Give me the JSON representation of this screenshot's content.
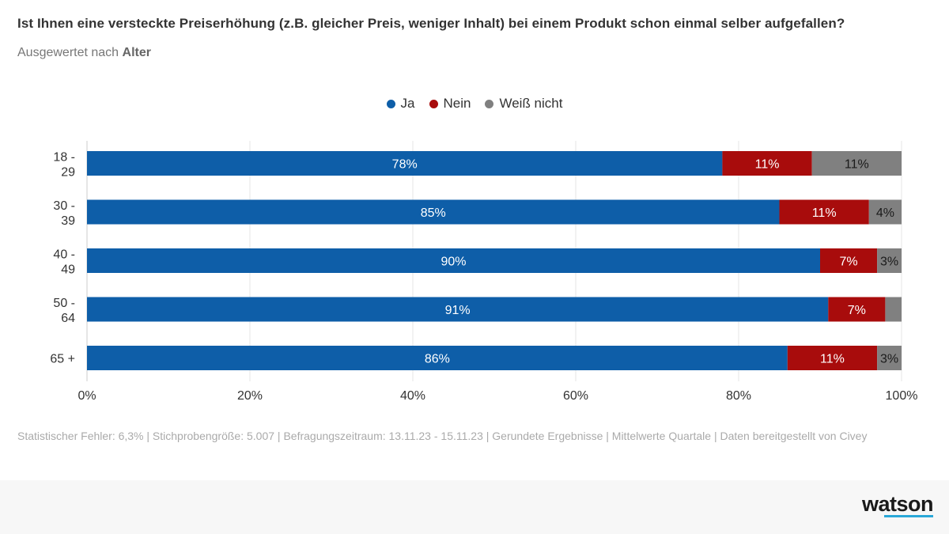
{
  "chart_data": {
    "type": "bar",
    "orientation": "horizontal",
    "stacked": true,
    "title": "Ist Ihnen eine versteckte Preiserhöhung (z.B. gleicher Preis, weniger Inhalt) bei einem Produkt schon einmal selber aufgefallen?",
    "subtitle_prefix": "Ausgewertet nach",
    "subtitle_bold": "Alter",
    "categories": [
      [
        "18 -",
        "29"
      ],
      [
        "30 -",
        "39"
      ],
      [
        "40 -",
        "49"
      ],
      [
        "50 -",
        "64"
      ],
      [
        "65 +"
      ]
    ],
    "series": [
      {
        "name": "Ja",
        "color": "#0e5ea8",
        "values": [
          78,
          85,
          90,
          91,
          86
        ],
        "labels": [
          "78%",
          "85%",
          "90%",
          "91%",
          "86%"
        ]
      },
      {
        "name": "Nein",
        "color": "#a80c0c",
        "values": [
          11,
          11,
          7,
          7,
          11
        ],
        "labels": [
          "11%",
          "11%",
          "7%",
          "7%",
          "11%"
        ]
      },
      {
        "name": "Weiß nicht",
        "color": "#808080",
        "values": [
          11,
          4,
          3,
          2,
          3
        ],
        "labels": [
          "11%",
          "4%",
          "3%",
          "",
          "3%"
        ]
      }
    ],
    "xlim": [
      0,
      100
    ],
    "xticks": [
      "0%",
      "20%",
      "40%",
      "60%",
      "80%",
      "100%"
    ],
    "grid": true,
    "legend_position": "top-center"
  },
  "footnote": "Statistischer Fehler: 6,3% | Stichprobengröße: 5.007 | Befragungszeitraum: 13.11.23 - 15.11.23 | Gerundete Ergebnisse | Mittelwerte Quartale | Daten bereitgestellt von Civey",
  "brand": "watson",
  "brand_accent": "#2aa8d8"
}
